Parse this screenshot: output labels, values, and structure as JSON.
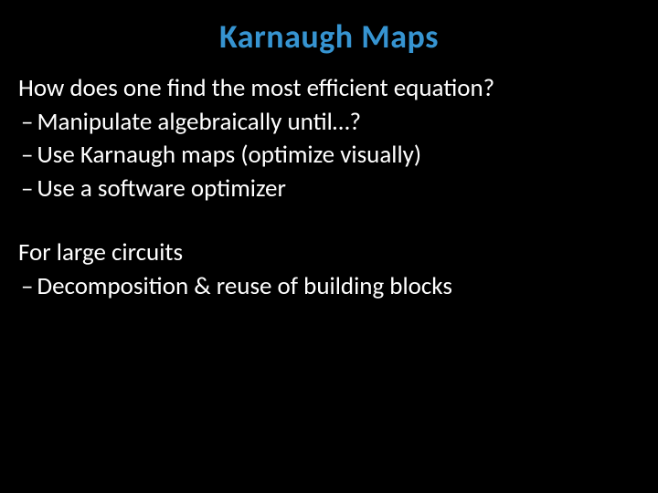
{
  "slide": {
    "title": "Karnaugh Maps",
    "section1": {
      "intro": "How does one find the most efficient equation?",
      "bullets": [
        "Manipulate algebraically until…?",
        "Use Karnaugh maps (optimize visually)",
        "Use a software optimizer"
      ]
    },
    "section2": {
      "intro": "For large circuits",
      "bullets": [
        "Decomposition & reuse of building blocks"
      ]
    },
    "colors": {
      "background": "#000000",
      "title": "#3694d1",
      "body": "#ffffff"
    },
    "typography": {
      "title_fontsize": 36,
      "title_weight": 700,
      "body_fontsize": 27,
      "font_family": "Calibri"
    },
    "dash": "–"
  }
}
